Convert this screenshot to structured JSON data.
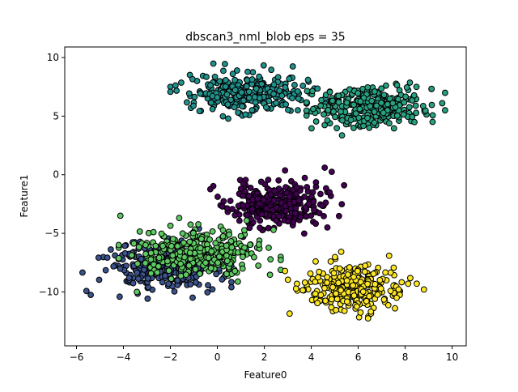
{
  "chart_data": {
    "type": "scatter",
    "title": "dbscan3_nml_blob  eps = 35",
    "xlabel": "Feature0",
    "ylabel": "Feature1",
    "xlim": [
      -6.5,
      10.6
    ],
    "ylim": [
      -14.6,
      10.9
    ],
    "xticks": [
      -6,
      -4,
      -2,
      0,
      2,
      4,
      6,
      8,
      10
    ],
    "yticks": [
      -10,
      -5,
      0,
      5,
      10
    ],
    "xtick_labels": [
      "−6",
      "−4",
      "−2",
      "0",
      "2",
      "4",
      "6",
      "8",
      "10"
    ],
    "ytick_labels": [
      "−10",
      "−5",
      "0",
      "5",
      "10"
    ],
    "grid": false,
    "legend": "none",
    "marker_edge_color": "#000000",
    "clusters": [
      {
        "color": "#440154",
        "center": [
          2.5,
          -2.6
        ],
        "spread": [
          1.0,
          0.95
        ],
        "count": 300,
        "range_x": [
          -0.3,
          5.8
        ],
        "range_y": [
          -5.7,
          0.6
        ],
        "seed": 11
      },
      {
        "color": "#3b528b",
        "center": [
          -2.3,
          -7.9
        ],
        "spread": [
          1.2,
          1.05
        ],
        "count": 300,
        "range_x": [
          -5.9,
          0.6
        ],
        "range_y": [
          -12.0,
          -4.6
        ],
        "seed": 23
      },
      {
        "color": "#21918c",
        "center": [
          1.3,
          7.0
        ],
        "spread": [
          1.25,
          0.8
        ],
        "count": 300,
        "range_x": [
          -2.0,
          4.6
        ],
        "range_y": [
          4.4,
          10.0
        ],
        "seed": 37
      },
      {
        "color": "#5ec962",
        "center": [
          -0.8,
          -6.5
        ],
        "spread": [
          1.3,
          1.1
        ],
        "count": 300,
        "range_x": [
          -4.2,
          2.7
        ],
        "range_y": [
          -10.0,
          -3.5
        ],
        "seed": 41
      },
      {
        "color": "#27a181",
        "center": [
          6.4,
          5.8
        ],
        "spread": [
          1.2,
          0.85
        ],
        "count": 300,
        "range_x": [
          3.8,
          9.7
        ],
        "range_y": [
          2.6,
          9.6
        ],
        "seed": 53
      },
      {
        "color": "#fde725",
        "center": [
          5.7,
          -9.6
        ],
        "spread": [
          1.05,
          0.95
        ],
        "count": 300,
        "range_x": [
          2.6,
          8.8
        ],
        "range_y": [
          -13.4,
          -5.8
        ],
        "seed": 67
      }
    ]
  }
}
